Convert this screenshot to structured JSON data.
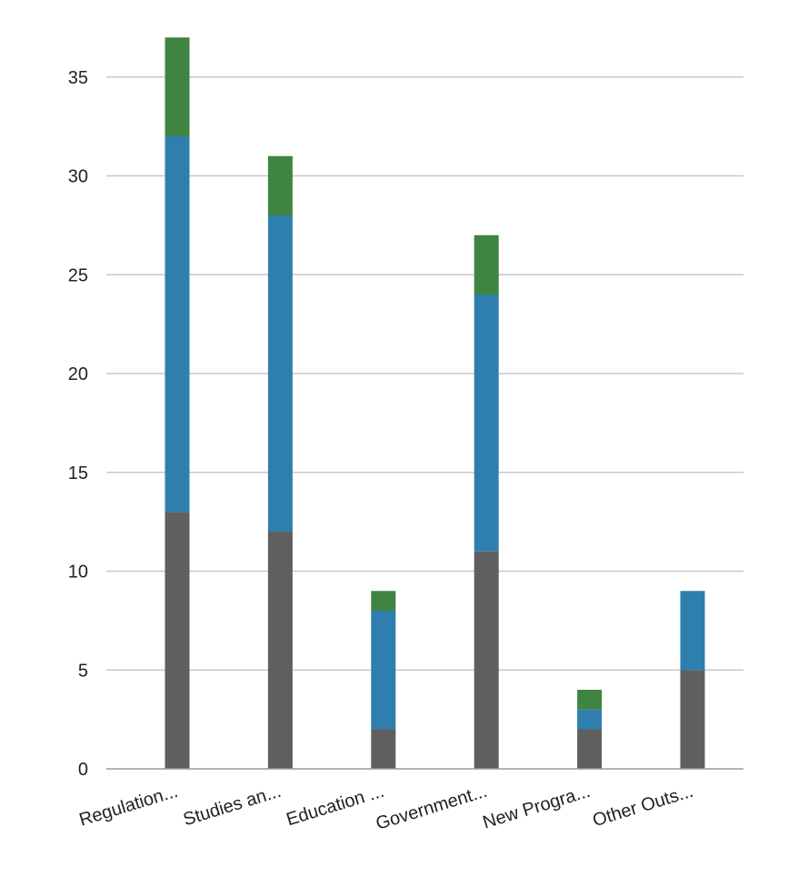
{
  "chart_data": {
    "type": "bar",
    "stacked": true,
    "categories": [
      "Regulation...",
      "Studies an...",
      "Education ...",
      "Government...",
      "New Progra...",
      "Other Outs..."
    ],
    "series": [
      {
        "color": "#5f5f5f",
        "values": [
          13,
          12,
          2,
          11,
          2,
          5
        ]
      },
      {
        "color": "#2e7fad",
        "values": [
          19,
          16,
          6,
          13,
          1,
          4
        ]
      },
      {
        "color": "#3f8440",
        "values": [
          5,
          3,
          1,
          3,
          1,
          0
        ]
      }
    ],
    "yticks": [
      "0",
      "5",
      "10",
      "15",
      "20",
      "25",
      "30",
      "35"
    ],
    "ylim": [
      0,
      37
    ],
    "grid": true,
    "gridColor": "#c8c8c8",
    "axisColor": "#9a9a9a",
    "legend": "none"
  }
}
